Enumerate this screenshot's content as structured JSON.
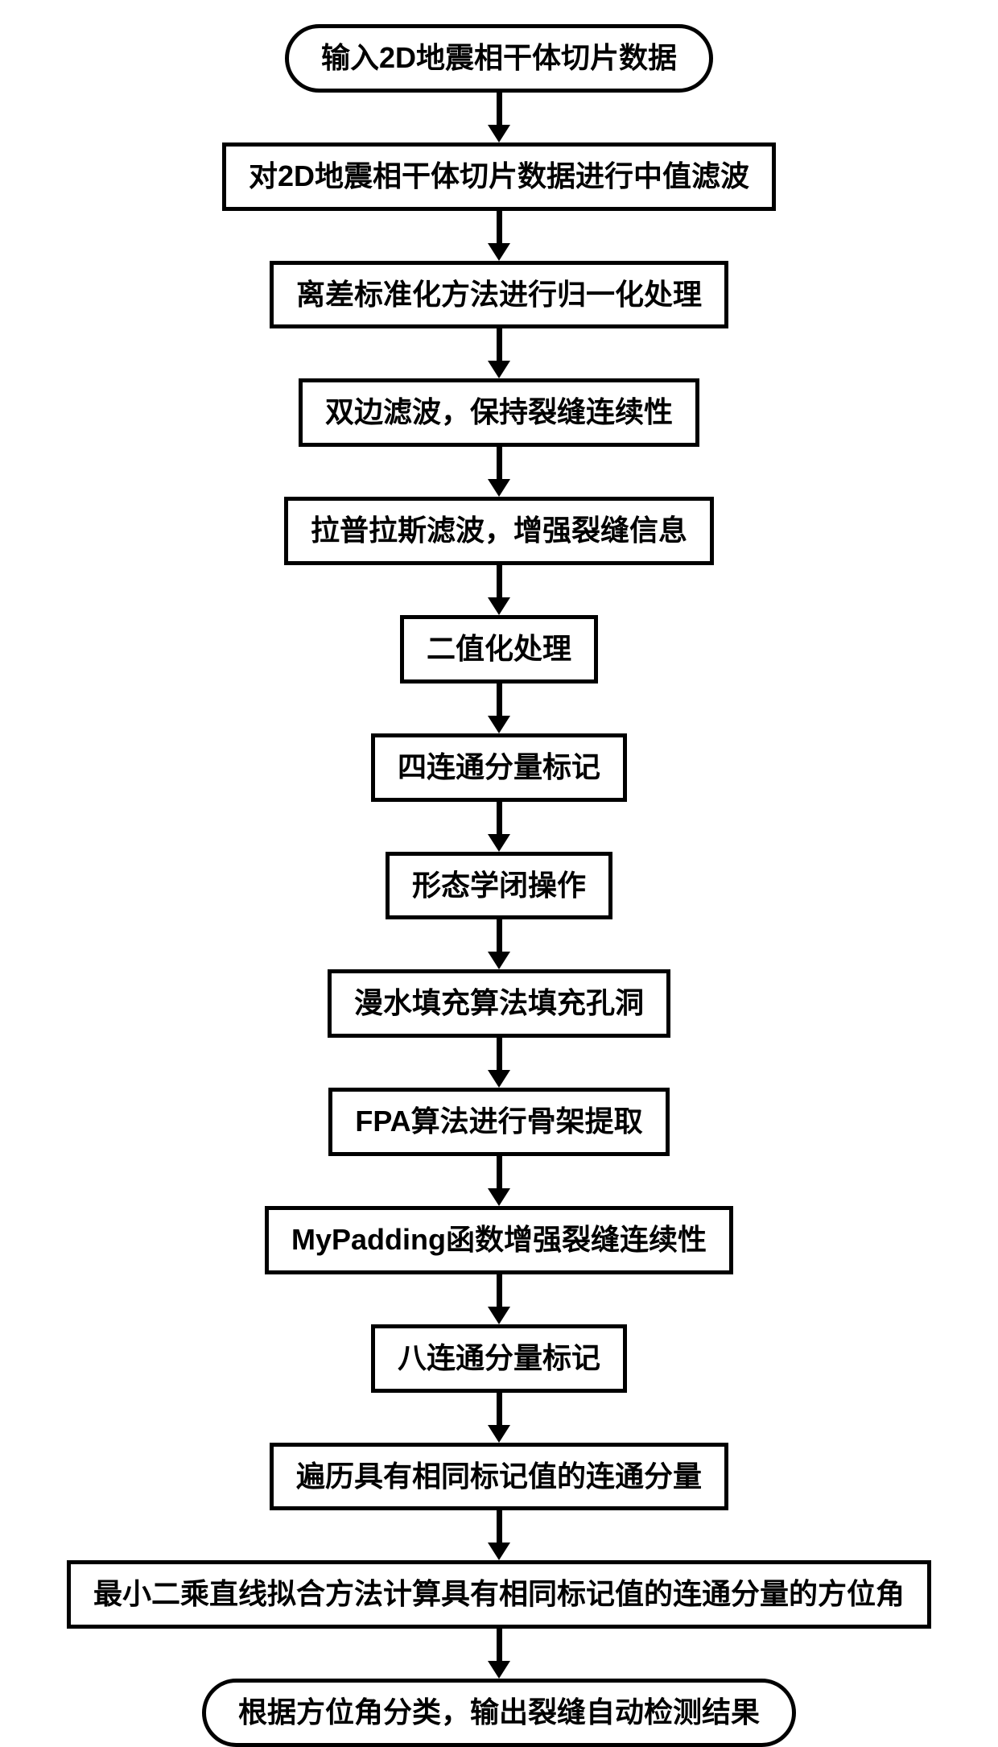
{
  "flowchart": {
    "type": "flowchart",
    "direction": "vertical",
    "background_color": "#ffffff",
    "node_border_color": "#000000",
    "node_border_width": 5,
    "node_text_color": "#000000",
    "arrow_color": "#000000",
    "arrow_line_width": 7,
    "arrow_head_width": 28,
    "arrow_head_height": 22,
    "font_weight": "bold",
    "nodes": [
      {
        "id": "start",
        "shape": "terminal",
        "label": "输入2D地震相干体切片数据",
        "fontsize": 36,
        "arrow_len": 40
      },
      {
        "id": "n1",
        "shape": "process",
        "label": "对2D地震相干体切片数据进行中值滤波",
        "fontsize": 36,
        "arrow_len": 40
      },
      {
        "id": "n2",
        "shape": "process",
        "label": "离差标准化方法进行归一化处理",
        "fontsize": 36,
        "arrow_len": 40
      },
      {
        "id": "n3",
        "shape": "process",
        "label": "双边滤波，保持裂缝连续性",
        "fontsize": 36,
        "arrow_len": 40
      },
      {
        "id": "n4",
        "shape": "process",
        "label": "拉普拉斯滤波，增强裂缝信息",
        "fontsize": 36,
        "arrow_len": 40
      },
      {
        "id": "n5",
        "shape": "process",
        "label": "二值化处理",
        "fontsize": 36,
        "arrow_len": 40
      },
      {
        "id": "n6",
        "shape": "process",
        "label": "四连通分量标记",
        "fontsize": 36,
        "arrow_len": 40
      },
      {
        "id": "n7",
        "shape": "process",
        "label": "形态学闭操作",
        "fontsize": 36,
        "arrow_len": 40
      },
      {
        "id": "n8",
        "shape": "process",
        "label": "漫水填充算法填充孔洞",
        "fontsize": 36,
        "arrow_len": 40
      },
      {
        "id": "n9",
        "shape": "process",
        "label": "FPA算法进行骨架提取",
        "fontsize": 36,
        "arrow_len": 40
      },
      {
        "id": "n10",
        "shape": "process",
        "label": "MyPadding函数增强裂缝连续性",
        "fontsize": 36,
        "arrow_len": 40
      },
      {
        "id": "n11",
        "shape": "process",
        "label": "八连通分量标记",
        "fontsize": 36,
        "arrow_len": 40
      },
      {
        "id": "n12",
        "shape": "process",
        "label": "遍历具有相同标记值的连通分量",
        "fontsize": 36,
        "arrow_len": 40
      },
      {
        "id": "n13",
        "shape": "process",
        "label": "最小二乘直线拟合方法计算具有相同标记值的连通分量的方位角",
        "fontsize": 36,
        "arrow_len": 40
      },
      {
        "id": "end",
        "shape": "terminal",
        "label": "根据方位角分类，输出裂缝自动检测结果",
        "fontsize": 36,
        "arrow_len": 0
      }
    ]
  }
}
